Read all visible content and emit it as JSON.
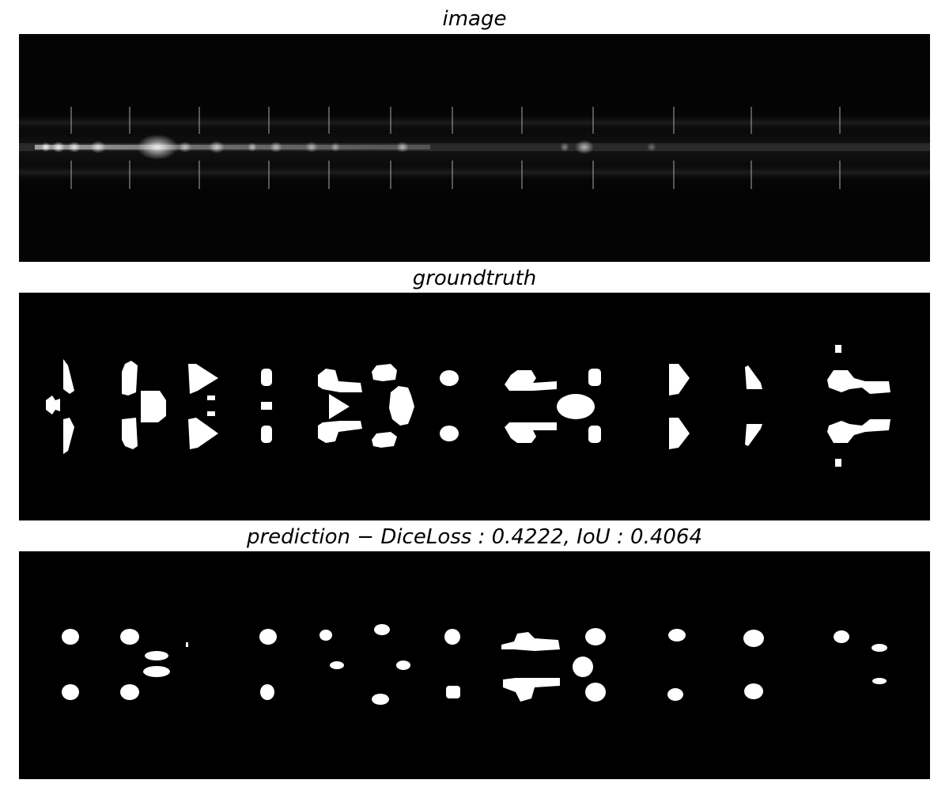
{
  "titles": {
    "image": "image",
    "groundtruth": "groundtruth",
    "prediction": "prediction − DiceLoss : 0.4222, IoU : 0.4064"
  },
  "metrics": {
    "dice_loss": 0.4222,
    "iou": 0.4064
  },
  "colors": {
    "background": "#000000",
    "mask": "#ffffff",
    "page": "#ffffff"
  }
}
